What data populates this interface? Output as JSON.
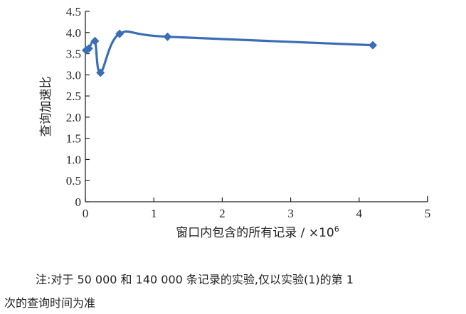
{
  "chart_data": {
    "type": "line",
    "xlabel_main": "窗口内包含的所有记录 / ×10",
    "xlabel_sup": "6",
    "ylabel": "查询加速比",
    "xlim": [
      0,
      5
    ],
    "ylim": [
      0,
      4.5
    ],
    "xticks": [
      "0",
      "1",
      "2",
      "3",
      "4",
      "5"
    ],
    "yticks": [
      "0",
      "0.5",
      "1.0",
      "1.5",
      "2.0",
      "2.5",
      "3.0",
      "3.5",
      "4.0",
      "4.5"
    ],
    "grid": false,
    "series": [
      {
        "color": "#3a6db5",
        "x": [
          0.01,
          0.05,
          0.14,
          0.22,
          0.5,
          1.2,
          4.2
        ],
        "y": [
          3.58,
          3.62,
          3.8,
          3.05,
          3.97,
          3.9,
          3.7
        ]
      }
    ]
  },
  "note": {
    "line1": "注:对于 50 000 和 140 000 条记录的实验,仅以实验(1)的第 1",
    "line2": "次的查询时间为准"
  }
}
